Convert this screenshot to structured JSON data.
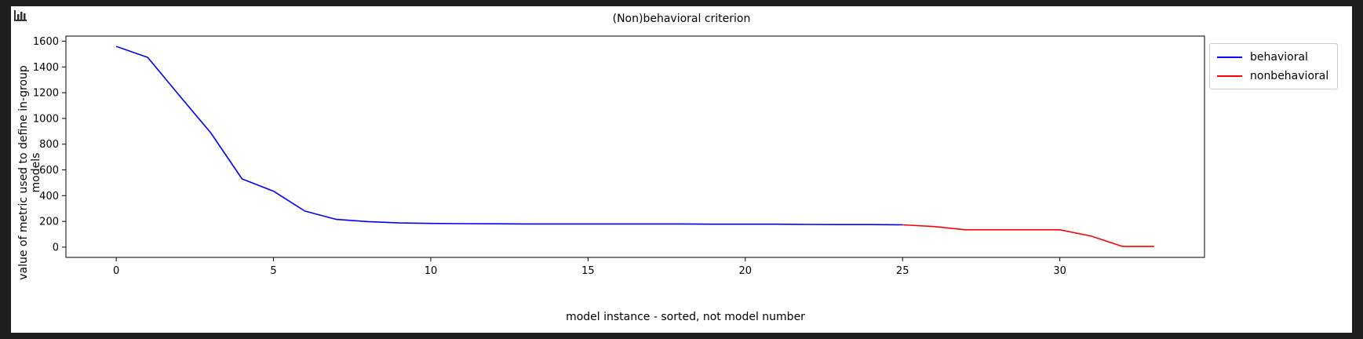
{
  "toolbar": {
    "icon": "bar-chart-icon"
  },
  "chart_data": {
    "type": "line",
    "title": "(Non)behavioral criterion",
    "xlabel": "model instance - sorted, not model number",
    "ylabel": "value of metric used to define in-group models",
    "xlim": [
      -1.6,
      34.6
    ],
    "ylim": [
      -80,
      1640
    ],
    "xticks": [
      0,
      5,
      10,
      15,
      20,
      25,
      30
    ],
    "yticks": [
      0,
      200,
      400,
      600,
      800,
      1000,
      1200,
      1400,
      1600
    ],
    "grid": false,
    "legend_position": "top-right",
    "series": [
      {
        "name": "behavioral",
        "color": "#0000ff",
        "x": [
          0,
          1,
          2,
          3,
          4,
          5,
          6,
          7,
          8,
          9,
          10,
          11,
          12,
          13,
          14,
          15,
          16,
          17,
          18,
          19,
          20,
          21,
          22,
          23,
          24,
          25
        ],
        "values": [
          1560,
          1475,
          1180,
          890,
          530,
          435,
          280,
          215,
          198,
          188,
          184,
          182,
          181,
          180,
          180,
          180,
          180,
          180,
          180,
          178,
          178,
          178,
          176,
          175,
          175,
          173
        ]
      },
      {
        "name": "nonbehavioral",
        "color": "#ff0000",
        "x": [
          25,
          26,
          27,
          28,
          29,
          30,
          31,
          32,
          33
        ],
        "values": [
          173,
          160,
          135,
          135,
          135,
          135,
          85,
          5,
          5
        ]
      }
    ]
  }
}
